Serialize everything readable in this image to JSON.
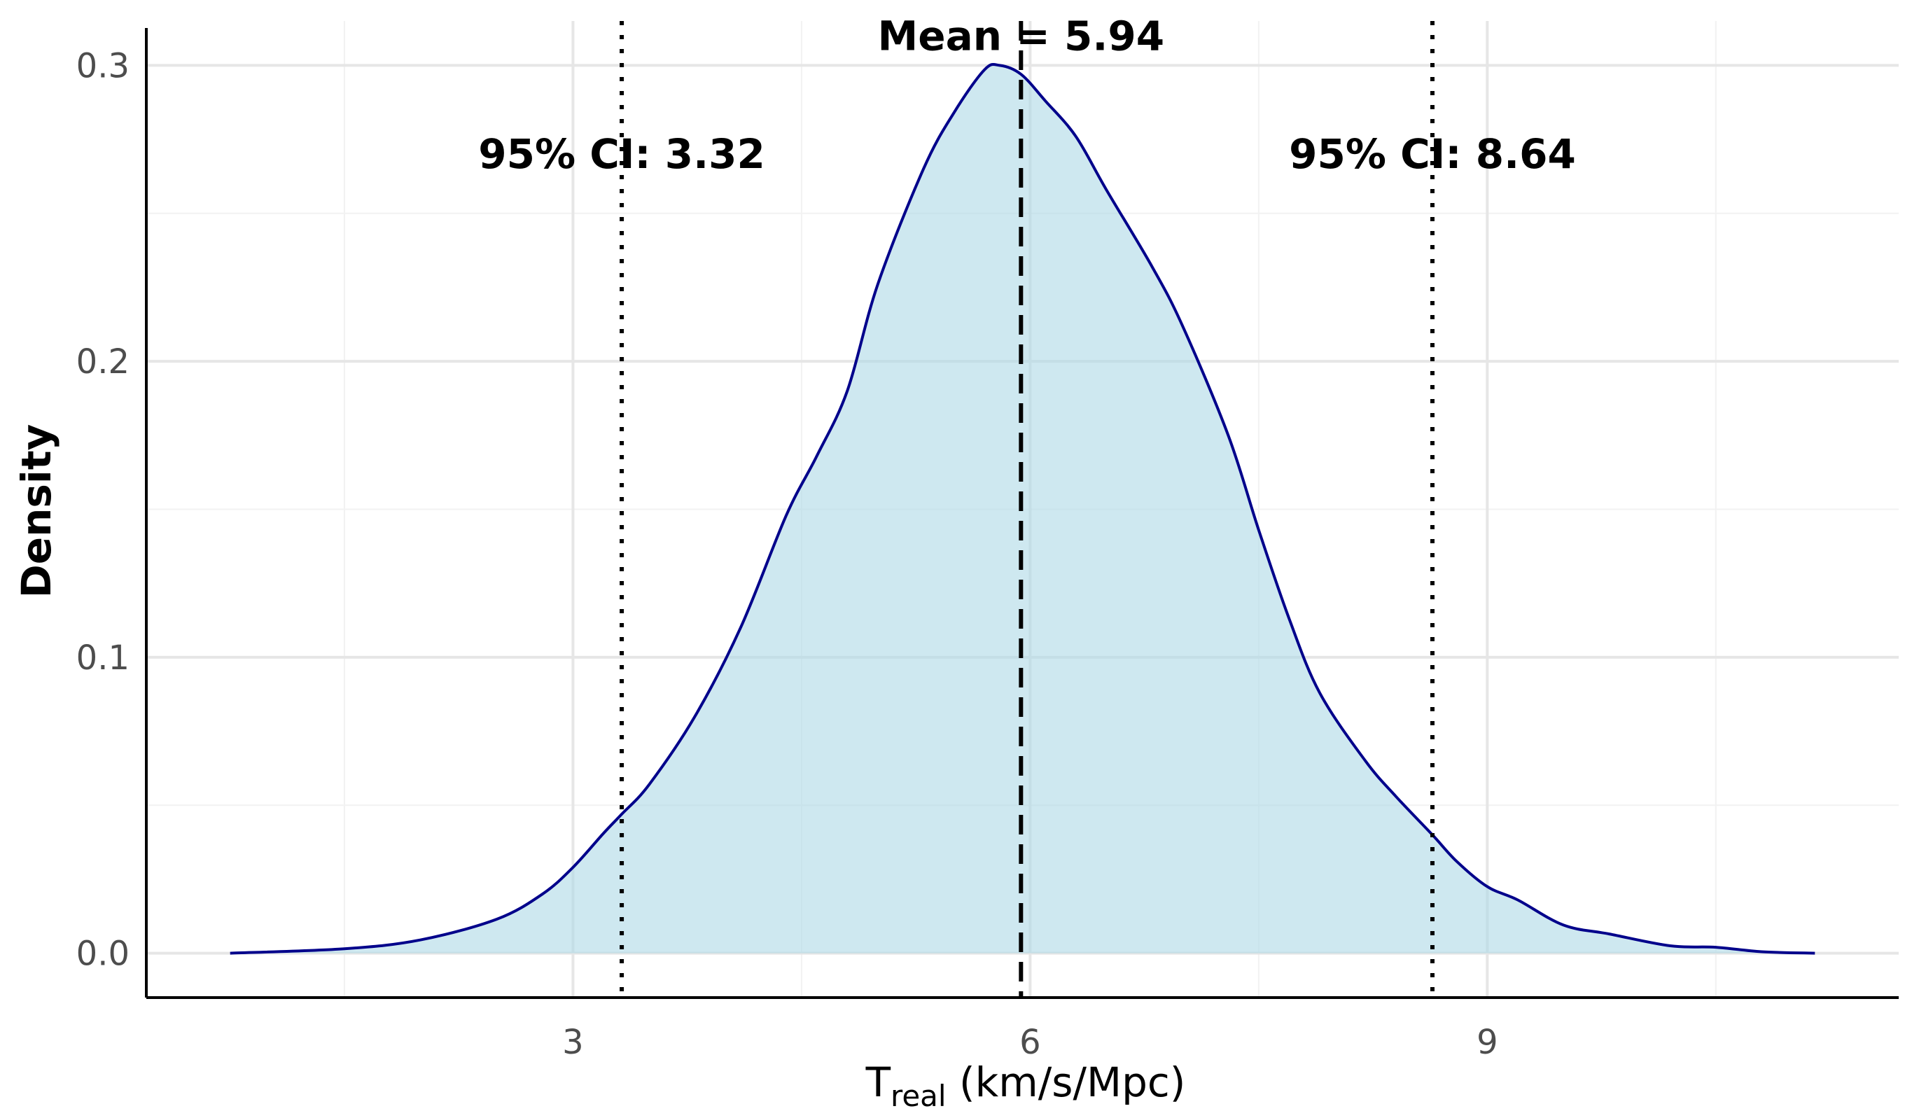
{
  "chart_data": {
    "type": "area",
    "title": "",
    "xlabel": {
      "main": "T",
      "subscript": "real",
      "unit": " (km/s/Mpc)"
    },
    "ylabel": "Density",
    "xlim": [
      0.2,
      11.7
    ],
    "ylim": [
      -0.015,
      0.315
    ],
    "x_ticks": [
      3,
      6,
      9
    ],
    "x_tick_labels": [
      "3",
      "6",
      "9"
    ],
    "x_minor_ticks": [
      1.5,
      4.5,
      7.5,
      10.5
    ],
    "y_ticks": [
      0.0,
      0.1,
      0.2,
      0.3
    ],
    "y_tick_labels": [
      "0.0",
      "0.1",
      "0.2",
      "0.3"
    ],
    "y_minor_ticks": [
      0.05,
      0.15,
      0.25
    ],
    "series": [
      {
        "name": "density",
        "x": [
          0.75,
          1.5,
          2.0,
          2.5,
          2.8,
          3.0,
          3.2,
          3.32,
          3.5,
          3.8,
          4.1,
          4.4,
          4.6,
          4.8,
          5.0,
          5.3,
          5.5,
          5.7,
          5.8,
          5.94,
          6.1,
          6.3,
          6.5,
          6.8,
          7.0,
          7.3,
          7.5,
          7.7,
          7.9,
          8.2,
          8.4,
          8.64,
          8.8,
          9.0,
          9.2,
          9.5,
          9.8,
          10.2,
          10.5,
          10.8,
          11.15
        ],
        "y": [
          0.0,
          0.0015,
          0.0045,
          0.0115,
          0.02,
          0.029,
          0.0405,
          0.047,
          0.057,
          0.08,
          0.11,
          0.148,
          0.168,
          0.19,
          0.226,
          0.265,
          0.284,
          0.2985,
          0.3,
          0.297,
          0.288,
          0.276,
          0.258,
          0.232,
          0.212,
          0.175,
          0.143,
          0.113,
          0.088,
          0.065,
          0.053,
          0.04,
          0.031,
          0.0225,
          0.018,
          0.0095,
          0.0065,
          0.0025,
          0.002,
          0.0005,
          0.0
        ]
      }
    ],
    "vlines": [
      {
        "x": 3.32,
        "style": "dotted",
        "label": "95% CI: 3.32"
      },
      {
        "x": 5.94,
        "style": "dashed",
        "label": "Mean = 5.94"
      },
      {
        "x": 8.64,
        "style": "dotted",
        "label": "95% CI: 8.64"
      }
    ],
    "fill_color": "#add8e6",
    "line_color": "#00008b",
    "grid": true,
    "legend": "none"
  }
}
